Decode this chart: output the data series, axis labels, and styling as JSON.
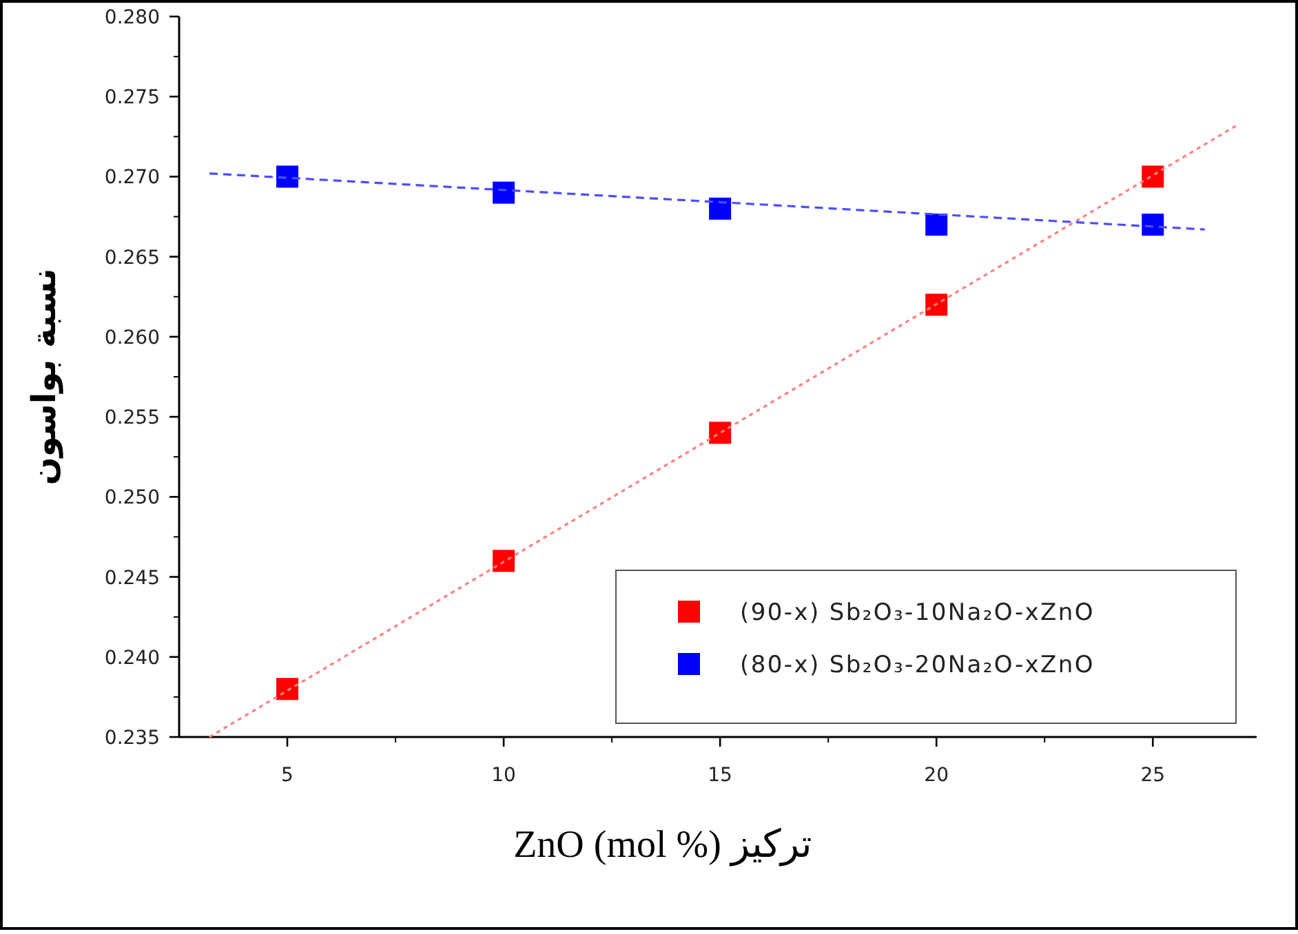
{
  "chart_data": {
    "type": "scatter",
    "xlabel": "ZnO (mol %) تركيز",
    "ylabel": "نسبة بواسون",
    "x": [
      5,
      10,
      15,
      20,
      25
    ],
    "series": [
      {
        "name": "(90-x) Sb₂O₃-10Na₂O-xZnO",
        "color": "#ff0000",
        "values": [
          0.238,
          0.246,
          0.254,
          0.262,
          0.27
        ],
        "marker": "square"
      },
      {
        "name": "(80-x) Sb₂O₃-20Na₂O-xZnO",
        "color": "#0000ff",
        "values": [
          0.27,
          0.269,
          0.268,
          0.267,
          0.267
        ],
        "marker": "square"
      },
      {
        "type": "line",
        "color": "#ff8080",
        "x": [
          3.2,
          27
        ],
        "values": [
          0.235,
          0.2733
        ],
        "line_style": "dotted",
        "marker": "none"
      },
      {
        "type": "line",
        "color": "#4d4dff",
        "x": [
          3.2,
          26.2
        ],
        "values": [
          0.2702,
          0.2667
        ],
        "line_style": "dashed",
        "marker": "none"
      }
    ],
    "xlim": [
      2.5,
      27.4
    ],
    "ylim": [
      0.235,
      0.28
    ],
    "xticks": [
      5,
      10,
      15,
      20,
      25
    ],
    "yticks": [
      {
        "value": 0.235,
        "label": "0.235"
      },
      {
        "value": 0.24,
        "label": "0.240"
      },
      {
        "value": 0.245,
        "label": "0.245"
      },
      {
        "value": 0.25,
        "label": "0.250"
      },
      {
        "value": 0.255,
        "label": "0.255"
      },
      {
        "value": 0.26,
        "label": "0.260"
      },
      {
        "value": 0.265,
        "label": "0.265"
      },
      {
        "value": 0.27,
        "label": "0.270"
      },
      {
        "value": 0.275,
        "label": "0.275"
      },
      {
        "value": 0.28,
        "label": "0.280"
      }
    ],
    "legend": "bottom right",
    "grid": false
  }
}
